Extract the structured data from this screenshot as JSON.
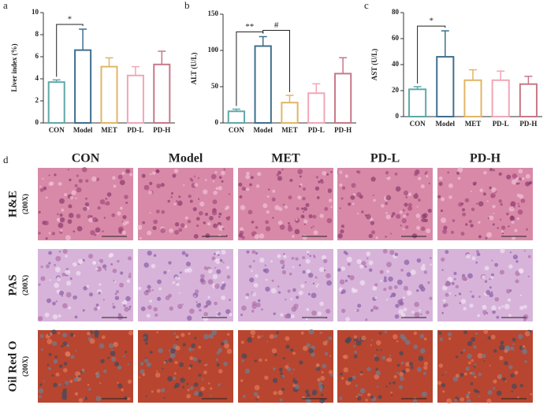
{
  "chart_data": [
    {
      "type": "bar",
      "panel_label": "a",
      "y_label": "Liver index (%)",
      "categories": [
        "CON",
        "Model",
        "MET",
        "PD-L",
        "PD-H"
      ],
      "values": [
        3.7,
        6.6,
        5.1,
        4.3,
        5.3
      ],
      "errors": [
        0.2,
        1.9,
        0.8,
        0.8,
        1.2
      ],
      "colors": [
        "#5fa8a8",
        "#3f6f8f",
        "#e2b566",
        "#f2a6b6",
        "#c77888"
      ],
      "ylim": [
        0,
        10
      ],
      "yticks": [
        0,
        2,
        4,
        6,
        8,
        10
      ],
      "annotations": [
        "*"
      ]
    },
    {
      "type": "bar",
      "panel_label": "b",
      "y_label": "ALT (U/L)",
      "categories": [
        "CON",
        "Model",
        "MET",
        "PD-L",
        "PD-H"
      ],
      "values": [
        16,
        106,
        28,
        41,
        68
      ],
      "errors": [
        3,
        13,
        10,
        13,
        22
      ],
      "colors": [
        "#5fa8a8",
        "#3f6f8f",
        "#e2b566",
        "#f2a6b6",
        "#c77888"
      ],
      "ylim": [
        0,
        150
      ],
      "yticks": [
        0,
        50,
        100,
        150
      ],
      "annotations": [
        "**",
        "#"
      ]
    },
    {
      "type": "bar",
      "panel_label": "c",
      "y_label": "AST (U/L)",
      "categories": [
        "CON",
        "Model",
        "MET",
        "PD-L",
        "PD-H"
      ],
      "values": [
        21,
        46,
        28,
        28,
        25
      ],
      "errors": [
        2,
        20,
        8,
        7,
        6
      ],
      "colors": [
        "#5fa8a8",
        "#3f6f8f",
        "#e2b566",
        "#f2a6b6",
        "#c77888"
      ],
      "ylim": [
        0,
        80
      ],
      "yticks": [
        0,
        20,
        40,
        60,
        80
      ],
      "annotations": [
        "*"
      ]
    }
  ],
  "panel_d": {
    "panel_label": "d",
    "columns": [
      "CON",
      "Model",
      "MET",
      "PD-L",
      "PD-H"
    ],
    "rows": [
      {
        "stain": "H&E",
        "magnification": "(200X)"
      },
      {
        "stain": "PAS",
        "magnification": "(200X)"
      },
      {
        "stain": "Oil Red O",
        "magnification": "(200X)"
      }
    ]
  }
}
